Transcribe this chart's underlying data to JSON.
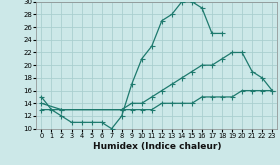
{
  "xlabel": "Humidex (Indice chaleur)",
  "bg_color": "#cce8e8",
  "line_color": "#1e7a6e",
  "grid_color": "#aacfcf",
  "xlim": [
    -0.5,
    23.5
  ],
  "ylim": [
    10,
    30
  ],
  "xticks": [
    0,
    1,
    2,
    3,
    4,
    5,
    6,
    7,
    8,
    9,
    10,
    11,
    12,
    13,
    14,
    15,
    16,
    17,
    18,
    19,
    20,
    21,
    22,
    23
  ],
  "yticks": [
    10,
    12,
    14,
    16,
    18,
    20,
    22,
    24,
    26,
    28,
    30
  ],
  "line1_x": [
    0,
    1,
    2,
    3,
    4,
    5,
    6,
    7,
    8,
    9,
    10,
    11,
    12,
    13,
    14,
    15,
    16,
    17,
    18
  ],
  "line1_y": [
    15,
    13,
    12,
    11,
    11,
    11,
    11,
    10,
    12,
    17,
    21,
    23,
    27,
    28,
    30,
    30,
    29,
    25,
    25
  ],
  "line2_x": [
    0,
    2,
    8,
    9,
    10,
    11,
    12,
    13,
    14,
    15,
    16,
    17,
    18,
    19,
    20,
    21,
    22,
    23
  ],
  "line2_y": [
    13,
    13,
    13,
    14,
    14,
    15,
    16,
    17,
    18,
    19,
    20,
    20,
    21,
    22,
    22,
    19,
    18,
    16
  ],
  "line3_x": [
    0,
    2,
    8,
    9,
    10,
    11,
    12,
    13,
    14,
    15,
    16,
    17,
    18,
    19,
    20,
    21,
    22,
    23
  ],
  "line3_y": [
    14,
    13,
    13,
    13,
    13,
    13,
    14,
    14,
    14,
    14,
    15,
    15,
    15,
    15,
    16,
    16,
    16,
    16
  ]
}
